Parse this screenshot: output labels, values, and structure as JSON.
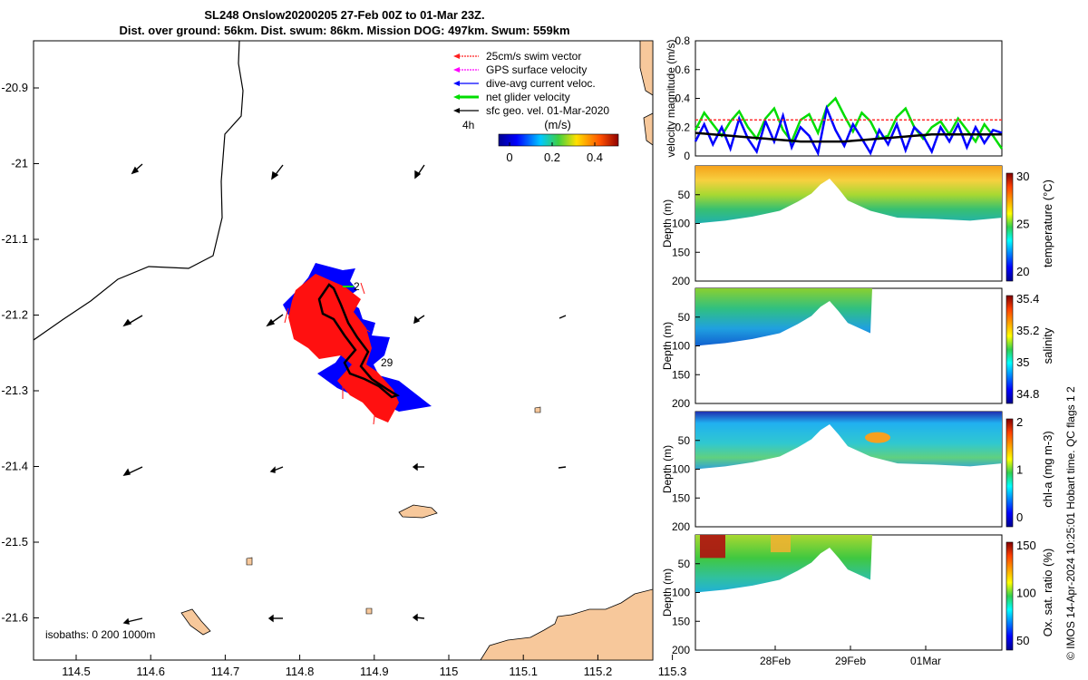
{
  "header": {
    "title_line1": "SL248 Onslow20200205 27-Feb 00Z to 01-Mar 23Z.",
    "title_line2": "Dist. over ground: 56km. Dist. swum: 86km. Mission DOG: 497km. Swum: 559km"
  },
  "map": {
    "xticks": [
      "114.5",
      "114.6",
      "114.7",
      "114.8",
      "114.9",
      "115",
      "115.1",
      "115.2",
      "115.3"
    ],
    "yticks": [
      "-20.9",
      "-21",
      "-21.1",
      "-21.2",
      "-21.3",
      "-21.4",
      "-21.5",
      "-21.6"
    ],
    "legend": [
      {
        "label": "25cm/s swim vector",
        "color": "#ff2020"
      },
      {
        "label": "GPS surface velocity",
        "color": "#ff00ff"
      },
      {
        "label": "dive-avg current veloc.",
        "color": "#0000ff"
      },
      {
        "label": "net glider velocity",
        "color": "#00dd00"
      },
      {
        "label": "sfc geo. vel. 01-Mar-2020",
        "color": "#000000"
      }
    ],
    "time_step_label": "4h",
    "colorbar_label": "(m/s)",
    "colorbar_ticks": [
      "0",
      "0.2",
      "0.4"
    ],
    "isobaths_label": "isobaths: 0   200  1000m",
    "track_labels": [
      "2",
      "29"
    ],
    "land_color": "#f7c89b"
  },
  "chart_data": [
    {
      "type": "line",
      "ylabel": "velocity magnitude (m/s)",
      "ylim": [
        0,
        0.8
      ],
      "yticks": [
        "0",
        "0.2",
        "0.4",
        "0.6",
        "0.8"
      ],
      "series": [
        {
          "color": "#00dd00",
          "values": [
            0.18,
            0.3,
            0.22,
            0.14,
            0.24,
            0.31,
            0.2,
            0.12,
            0.26,
            0.33,
            0.18,
            0.1,
            0.25,
            0.29,
            0.16,
            0.34,
            0.4,
            0.28,
            0.17,
            0.3,
            0.24,
            0.12,
            0.14,
            0.27,
            0.33,
            0.2,
            0.12,
            0.2,
            0.24,
            0.15,
            0.26,
            0.18,
            0.1,
            0.22,
            0.14,
            0.05
          ]
        },
        {
          "color": "#0000ff",
          "values": [
            0.1,
            0.22,
            0.08,
            0.2,
            0.05,
            0.26,
            0.12,
            0.03,
            0.24,
            0.1,
            0.28,
            0.06,
            0.2,
            0.14,
            0.02,
            0.33,
            0.18,
            0.07,
            0.22,
            0.12,
            0.02,
            0.18,
            0.08,
            0.22,
            0.04,
            0.2,
            0.14,
            0.03,
            0.2,
            0.1,
            0.22,
            0.06,
            0.2,
            0.09,
            0.18,
            0.16
          ]
        },
        {
          "color": "#ff3030",
          "dashed": true,
          "values": [
            0.25,
            0.25,
            0.25,
            0.25,
            0.25,
            0.25,
            0.25,
            0.25,
            0.25,
            0.25,
            0.25,
            0.25,
            0.25,
            0.25,
            0.25,
            0.25,
            0.25,
            0.25,
            0.25,
            0.25,
            0.25,
            0.25,
            0.25,
            0.25,
            0.25,
            0.25,
            0.25,
            0.25,
            0.25,
            0.25,
            0.25,
            0.25,
            0.25,
            0.25,
            0.25,
            0.25
          ]
        },
        {
          "color": "#000000",
          "values": [
            0.16,
            0.155,
            0.15,
            0.145,
            0.14,
            0.135,
            0.13,
            0.125,
            0.12,
            0.115,
            0.11,
            0.105,
            0.1,
            0.1,
            0.1,
            0.1,
            0.1,
            0.1,
            0.105,
            0.11,
            0.115,
            0.12,
            0.125,
            0.13,
            0.135,
            0.14,
            0.145,
            0.15,
            0.15,
            0.15,
            0.15,
            0.15,
            0.15,
            0.15,
            0.15,
            0.15
          ]
        }
      ]
    },
    {
      "type": "heatmap",
      "ylabel": "Depth (m)",
      "colorbar_label": "temperature (°C)",
      "colorbar_ticks": [
        "20",
        "25",
        "30"
      ],
      "yticks": [
        "50",
        "100",
        "150",
        "200"
      ],
      "ylim": [
        200,
        0
      ]
    },
    {
      "type": "heatmap",
      "ylabel": "Depth (m)",
      "colorbar_label": "salinity",
      "colorbar_ticks": [
        "34.8",
        "35",
        "35.2",
        "35.4"
      ],
      "yticks": [
        "50",
        "100",
        "150",
        "200"
      ],
      "ylim": [
        200,
        0
      ]
    },
    {
      "type": "heatmap",
      "ylabel": "Depth (m)",
      "colorbar_label": "chl-a (mg m-3)",
      "colorbar_ticks": [
        "0",
        "1",
        "2"
      ],
      "yticks": [
        "50",
        "100",
        "150",
        "200"
      ],
      "ylim": [
        200,
        0
      ]
    },
    {
      "type": "heatmap",
      "ylabel": "Depth (m)",
      "colorbar_label": "Ox. sat. ratio (%)",
      "colorbar_ticks": [
        "50",
        "100",
        "150"
      ],
      "yticks": [
        "50",
        "100",
        "150",
        "200"
      ],
      "ylim": [
        200,
        0
      ],
      "xticks": [
        "28Feb",
        "29Feb",
        "01Mar"
      ]
    }
  ],
  "footer_credit": "© IMOS 14-Apr-2024 10:25:01 Hobart time. QC flags 1  2"
}
